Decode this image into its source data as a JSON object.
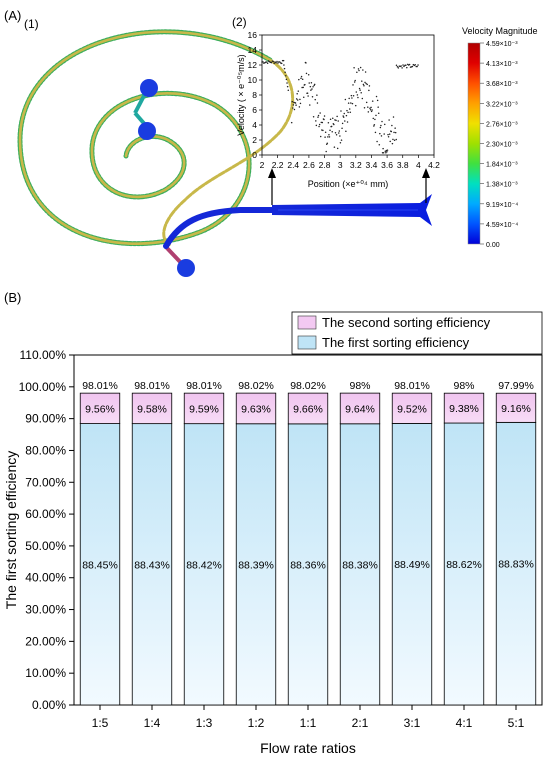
{
  "panel_a": {
    "label": "(A)",
    "sub1_label": "(1)",
    "sub2_label": "(2)",
    "colorbar": {
      "title": "Velocity Magnitude",
      "ticks": [
        "4.59×10⁻³",
        "4.13×10⁻³",
        "3.68×10⁻³",
        "3.22×10⁻³",
        "2.76×10⁻³",
        "2.30×10⁻³",
        "1.84×10⁻³",
        "1.38×10⁻³",
        "9.19×10⁻⁴",
        "4.59×10⁻⁴",
        "0.00"
      ],
      "colors": [
        "#0000d8",
        "#0055ff",
        "#00aaff",
        "#00e0c0",
        "#40e040",
        "#a0e000",
        "#f0e000",
        "#ffa000",
        "#ff5000",
        "#e00000",
        "#b00000"
      ]
    },
    "inset_chart": {
      "type": "scatter",
      "xlabel": "Position  (×e⁺⁰⁴ mm)",
      "ylabel": "Velocity ( × e⁻⁰⁵m/s)",
      "xlim": [
        2,
        4.2
      ],
      "ylim": [
        0,
        16
      ],
      "x_ticks": [
        "2",
        "2.2",
        "2.4",
        "2.6",
        "2.8",
        "3",
        "3.2",
        "3.4",
        "3.6",
        "3.8",
        "4",
        "4.2"
      ],
      "y_ticks": [
        "0",
        "2",
        "4",
        "6",
        "8",
        "10",
        "12",
        "14",
        "16"
      ]
    }
  },
  "panel_b": {
    "label": "(B)"
  },
  "chart_data": {
    "type": "bar",
    "stacked": true,
    "categories": [
      "1:5",
      "1:4",
      "1:3",
      "1:2",
      "1:1",
      "2:1",
      "3:1",
      "4:1",
      "5:1"
    ],
    "series": [
      {
        "name": "The first sorting efficiency",
        "values": [
          88.45,
          88.43,
          88.42,
          88.39,
          88.36,
          88.38,
          88.49,
          88.62,
          88.83
        ],
        "labels": [
          "88.45%",
          "88.43%",
          "88.42%",
          "88.39%",
          "88.36%",
          "88.38%",
          "88.49%",
          "88.62%",
          "88.83%"
        ],
        "color": "#bfe4f6"
      },
      {
        "name": "The second sorting efficiency",
        "values": [
          9.56,
          9.58,
          9.59,
          9.63,
          9.66,
          9.64,
          9.52,
          9.38,
          9.16
        ],
        "labels": [
          "9.56%",
          "9.58%",
          "9.59%",
          "9.63%",
          "9.66%",
          "9.64%",
          "9.52%",
          "9.38%",
          "9.16%"
        ],
        "color": "#f3c9f2"
      }
    ],
    "totals": [
      "98.01%",
      "98.01%",
      "98.01%",
      "98.02%",
      "98.02%",
      "98%",
      "98.01%",
      "98%",
      "97.99%"
    ],
    "xlabel": "Flow rate ratios",
    "ylabel": "The first sorting efficiency",
    "ylim": [
      0,
      110
    ],
    "y_ticks": [
      "0.00%",
      "10.00%",
      "20.00%",
      "30.00%",
      "40.00%",
      "50.00%",
      "60.00%",
      "70.00%",
      "80.00%",
      "90.00%",
      "100.00%",
      "110.00%"
    ],
    "legend_position": "top-right",
    "grid": false
  }
}
